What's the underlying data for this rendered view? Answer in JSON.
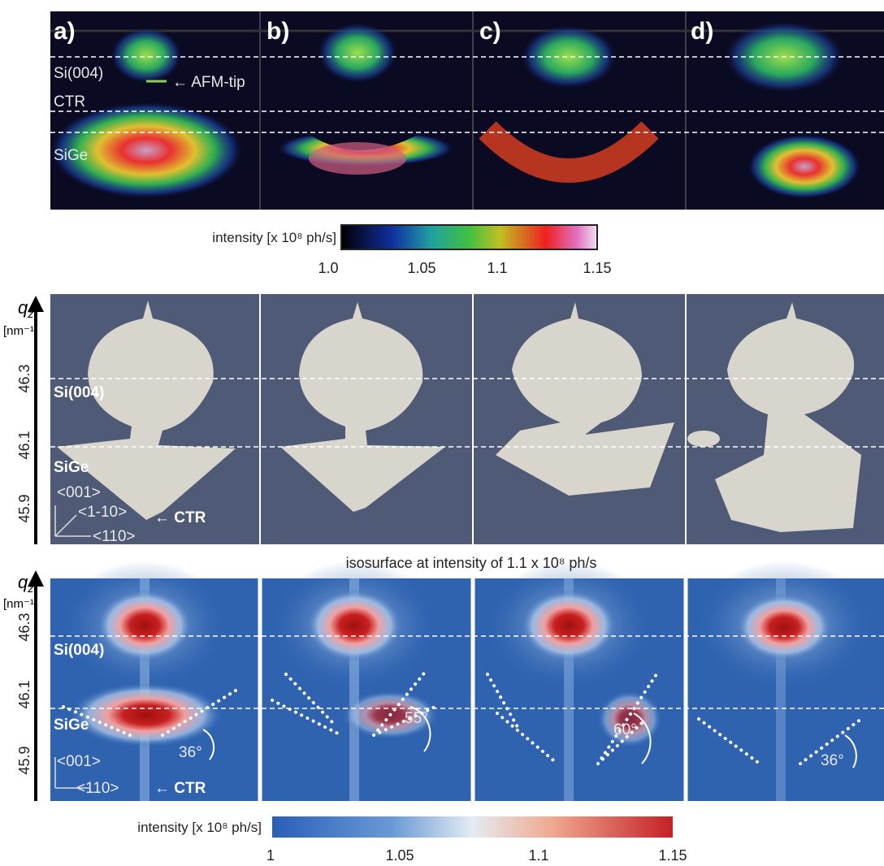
{
  "panels_top": {
    "labels": [
      "a)",
      "b)",
      "c)",
      "d)"
    ],
    "annotations": {
      "si": "Si(004)",
      "ctr": "CTR",
      "sige": "SiGe",
      "tip": "← AFM-tip"
    }
  },
  "colorbar_top": {
    "label": "intensity [x 10⁸ ph/s]",
    "ticks": [
      "1.0",
      "1.05",
      "1.1",
      "1.15"
    ]
  },
  "panels_middle": {
    "axis": {
      "symbol": "q",
      "subscript": "z",
      "unit": "[nm⁻¹]",
      "ticks": [
        "46.3",
        "46.1",
        "45.9"
      ]
    },
    "annotations": {
      "si": "Si(004)",
      "sige": "SiGe",
      "dir1": "<001>",
      "dir2": "<1-10>",
      "dir3": "<110>",
      "ctr": "← CTR"
    }
  },
  "caption": "isosurface at intensity of 1.1 x 10⁸ ph/s",
  "panels_bottom": {
    "axis": {
      "symbol": "q",
      "subscript": "z",
      "unit": "[nm⁻¹]",
      "ticks": [
        "46.3",
        "46.1",
        "45.9"
      ]
    },
    "annotations": {
      "si": "Si(004)",
      "sige": "SiGe",
      "dir1": "<001>",
      "dir3": "<110>",
      "ctr": "← CTR"
    },
    "angles": [
      "36°",
      "55°",
      "60°",
      "36°"
    ]
  },
  "colorbar_bottom": {
    "label": "intensity [x 10⁸ ph/s]",
    "ticks": [
      "1",
      "1.05",
      "1.1",
      "1.15"
    ]
  }
}
